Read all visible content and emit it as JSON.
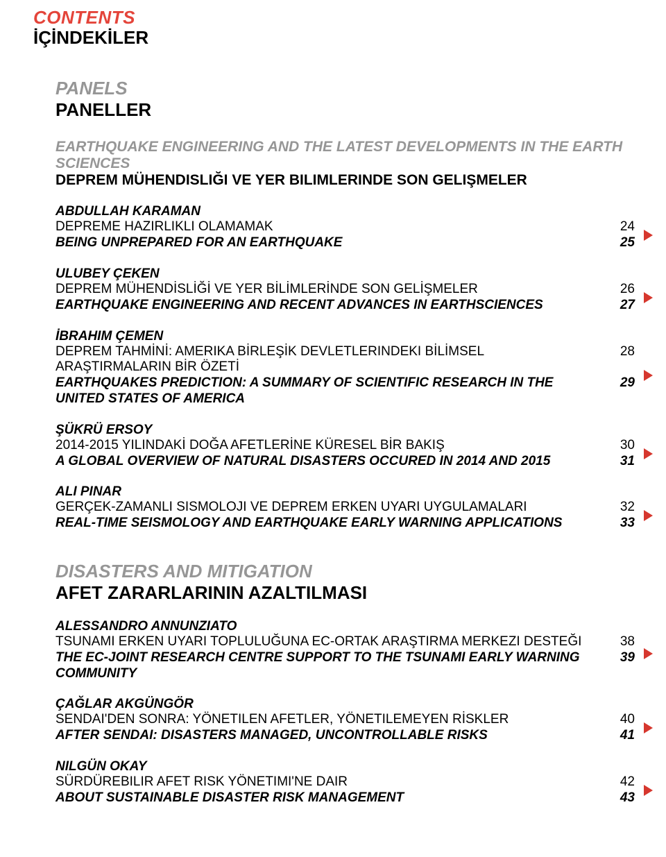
{
  "header": {
    "en": "CONTENTS",
    "tr": "İÇİNDEKİLER"
  },
  "sections": [
    {
      "title_en": "PANELS",
      "title_tr": "PANELLER",
      "subsection_en": "EARTHQUAKE ENGINEERING AND THE LATEST DEVELOPMENTS IN THE EARTH SCIENCES",
      "subsection_tr": "DEPREM MÜHENDISLIĞI VE YER BILIMLERINDE SON GELIŞMELER",
      "entries": [
        {
          "author": "ABDULLAH KARAMAN",
          "tr": "DEPREME HAZIRLIKLI OLAMAMAK",
          "tr_page": "24",
          "en": "BEING UNPREPARED FOR AN EARTHQUAKE",
          "en_page": "25"
        },
        {
          "author": "ULUBEY ÇEKEN",
          "tr": "DEPREM MÜHENDİSLİĞİ VE YER BİLİMLERİNDE SON GELİŞMELER",
          "tr_page": "26",
          "en": "EARTHQUAKE ENGINEERING AND RECENT ADVANCES IN EARTHSCIENCES",
          "en_page": "27"
        },
        {
          "author": "İBRAHIM ÇEMEN",
          "tr": "DEPREM TAHMİNİ: AMERIKA BİRLEŞİK DEVLETLERINDEKI BİLİMSEL ARAŞTIRMALARIN BİR ÖZETİ",
          "tr_page": "28",
          "en": "EARTHQUAKES PREDICTION: A SUMMARY OF SCIENTIFIC RESEARCH IN THE UNITED STATES OF AMERICA",
          "en_page": "29"
        },
        {
          "author": "ŞÜKRÜ ERSOY",
          "tr": "2014-2015 YILINDAKİ DOĞA AFETLERİNE KÜRESEL BİR BAKIŞ",
          "tr_page": "30",
          "en": "A GLOBAL OVERVIEW OF NATURAL DISASTERS OCCURED IN 2014 AND 2015",
          "en_page": "31"
        },
        {
          "author": "ALI PINAR",
          "tr": "GERÇEK-ZAMANLI SISMOLOJI VE DEPREM ERKEN UYARI UYGULAMALARI",
          "tr_page": "32",
          "en": "REAL-TIME SEISMOLOGY AND EARTHQUAKE EARLY WARNING APPLICATIONS",
          "en_page": "33"
        }
      ]
    },
    {
      "title_en": "DISASTERS AND MITIGATION",
      "title_tr": "AFET ZARARLARININ AZALTILMASI",
      "entries": [
        {
          "author": "ALESSANDRO ANNUNZIATO",
          "tr": "TSUNAMI ERKEN UYARI TOPLULUĞUNA EC-ORTAK ARAŞTIRMA MERKEZI DESTEĞI",
          "tr_page": "38",
          "en": "THE EC-JOINT RESEARCH CENTRE SUPPORT TO THE TSUNAMI EARLY WARNING COMMUNITY",
          "en_page": "39"
        },
        {
          "author": "ÇAĞLAR AKGÜNGÖR",
          "tr": "SENDAI'DEN SONRA: YÖNETILEN AFETLER, YÖNETILEMEYEN RİSKLER",
          "tr_page": "40",
          "en": "AFTER SENDAI: DISASTERS MANAGED, UNCONTROLLABLE RISKS",
          "en_page": "41"
        },
        {
          "author": "NILGÜN OKAY",
          "tr": "SÜRDÜREBILIR AFET RISK YÖNETIMI'NE DAIR",
          "tr_page": "42",
          "en": "ABOUT SUSTAINABLE DISASTER RISK MANAGEMENT",
          "en_page": "43"
        }
      ]
    }
  ],
  "colors": {
    "accent": "#e4443a",
    "muted": "#969696",
    "arrow": "#d6372e"
  }
}
